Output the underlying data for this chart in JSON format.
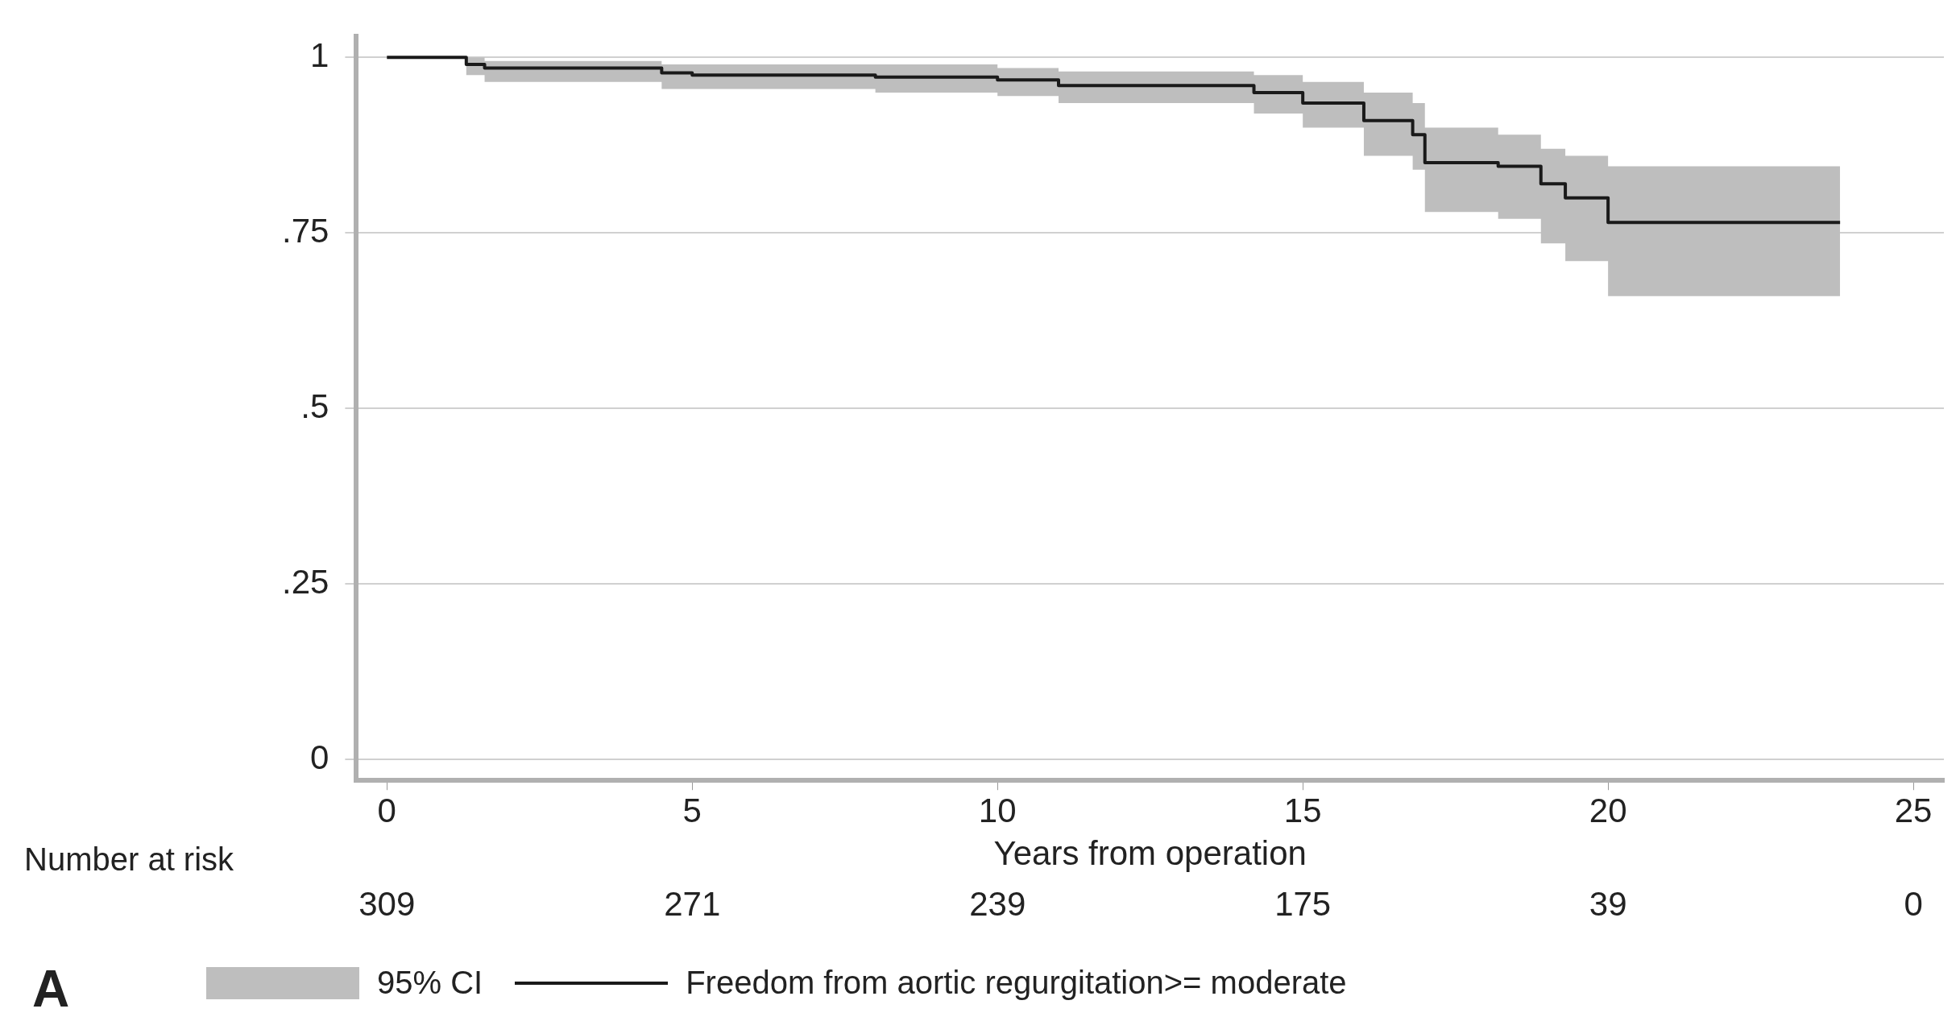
{
  "chart_data": {
    "type": "step",
    "xlabel": "Years from operation",
    "x": [
      0,
      1.3,
      1.6,
      4.5,
      5,
      8,
      10,
      11,
      11.8,
      14.2,
      15,
      16,
      16.8,
      17,
      18.2,
      18.9,
      19.3,
      20,
      21.1,
      23.8
    ],
    "series": [
      {
        "name": "Freedom from aortic regurgitation>= moderate",
        "color": "#1a1a1a",
        "values": [
          1,
          1,
          0.99,
          0.985,
          0.978,
          0.975,
          0.972,
          0.968,
          0.96,
          0.96,
          0.95,
          0.935,
          0.91,
          0.89,
          0.85,
          0.845,
          0.82,
          0.8,
          0.765,
          0.765
        ],
        "lower": [
          1,
          1,
          0.975,
          0.965,
          0.955,
          0.955,
          0.95,
          0.945,
          0.935,
          0.935,
          0.92,
          0.9,
          0.86,
          0.84,
          0.78,
          0.77,
          0.735,
          0.71,
          0.66,
          0.66
        ],
        "upper": [
          1,
          1,
          1,
          0.995,
          0.99,
          0.99,
          0.99,
          0.985,
          0.98,
          0.98,
          0.975,
          0.965,
          0.95,
          0.935,
          0.9,
          0.89,
          0.87,
          0.86,
          0.845,
          0.845
        ]
      }
    ],
    "xlim": [
      -0.5,
      25.5
    ],
    "xticks": [
      0,
      5,
      10,
      15,
      20,
      25
    ],
    "ylim": [
      -0.03,
      1.03
    ],
    "yticks": [
      0,
      {
        "value": 0.25,
        "label": ".25"
      },
      {
        "value": 0.5,
        "label": ".5"
      },
      {
        "value": 0.75,
        "label": ".75"
      },
      1
    ],
    "grid": "y",
    "legend": "bottom",
    "marker": "none",
    "line_style": "solid",
    "annotations": [
      "Number at risk",
      "309",
      "271",
      "239",
      "175",
      "39",
      "0",
      "95% CI",
      "A"
    ]
  }
}
